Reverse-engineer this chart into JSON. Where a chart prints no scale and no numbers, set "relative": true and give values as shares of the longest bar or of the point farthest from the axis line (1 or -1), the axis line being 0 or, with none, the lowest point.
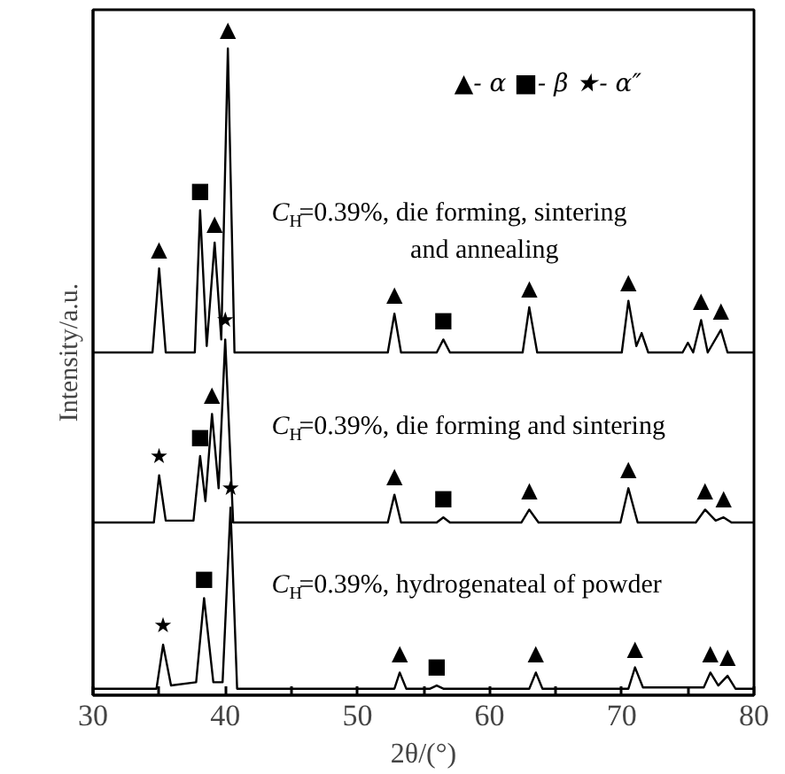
{
  "chart_data": {
    "type": "line",
    "relative": true,
    "xlabel": "2θ/(°)",
    "ylabel": "Intensity/a.u.",
    "xlim": [
      30,
      80
    ],
    "xticks": [
      30,
      {
        "value": 35,
        "label": null
      },
      40,
      {
        "value": 45,
        "label": null
      },
      50,
      {
        "value": 55,
        "label": null
      },
      60,
      {
        "value": 65,
        "label": null
      },
      70,
      {
        "value": 75,
        "label": null
      },
      80
    ],
    "grid": false,
    "marker": "none",
    "line_style": "solid",
    "series": [
      {
        "color": "#000000",
        "x": [
          30,
          34.5,
          35,
          35.5,
          37.7,
          38.1,
          38.6,
          39.2,
          39.7,
          40.2,
          40.7,
          52.3,
          52.8,
          53.3,
          56,
          56.5,
          57,
          62.5,
          63,
          63.6,
          70,
          70.5,
          71.1,
          71.5,
          72,
          74.6,
          75,
          75.4,
          76,
          76.5,
          77.5,
          78,
          80
        ],
        "values": [
          0.53,
          0.53,
          0.66,
          0.53,
          0.53,
          0.75,
          0.54,
          0.7,
          0.55,
          1.0,
          0.53,
          0.53,
          0.59,
          0.53,
          0.53,
          0.55,
          0.53,
          0.53,
          0.6,
          0.53,
          0.53,
          0.61,
          0.54,
          0.56,
          0.53,
          0.53,
          0.545,
          0.53,
          0.58,
          0.53,
          0.565,
          0.53,
          0.53
        ]
      },
      {
        "color": "#000000",
        "x": [
          30,
          34.6,
          35,
          35.5,
          37.6,
          38.1,
          38.5,
          39,
          39.5,
          40,
          40.6,
          52.3,
          52.8,
          53.3,
          56,
          56.5,
          57,
          62.4,
          63,
          63.7,
          69.9,
          70.5,
          71.2,
          75.6,
          76.3,
          77.1,
          77.7,
          78.3,
          80
        ],
        "values": [
          0.267,
          0.267,
          0.34,
          0.27,
          0.27,
          0.37,
          0.3,
          0.435,
          0.32,
          0.55,
          0.267,
          0.267,
          0.31,
          0.267,
          0.267,
          0.275,
          0.267,
          0.267,
          0.287,
          0.267,
          0.267,
          0.32,
          0.267,
          0.267,
          0.287,
          0.27,
          0.275,
          0.267,
          0.267
        ]
      },
      {
        "color": "#000000",
        "x": [
          30,
          34.8,
          35.3,
          35.9,
          37.8,
          38.4,
          39.1,
          39.8,
          40.4,
          40.9,
          52.8,
          53.2,
          53.7,
          55.5,
          56,
          56.5,
          63,
          63.5,
          64,
          70.5,
          71,
          71.6,
          76.2,
          76.7,
          77.3,
          78,
          78.6,
          80
        ],
        "values": [
          0.01,
          0.01,
          0.078,
          0.015,
          0.02,
          0.15,
          0.02,
          0.02,
          0.29,
          0.01,
          0.01,
          0.035,
          0.01,
          0.01,
          0.015,
          0.01,
          0.01,
          0.035,
          0.01,
          0.01,
          0.043,
          0.012,
          0.012,
          0.035,
          0.015,
          0.03,
          0.01,
          0.01
        ]
      }
    ],
    "annotations": [
      "▲- α  ■- β  ★- α″",
      "C$_{H}$=0.39%, die forming, sintering\nand annealing",
      "C$_{H}$=0.39%, die forming and sintering",
      "C$_{H}$=0.39%, hydrogenateal of powder",
      {
        "text": "▲",
        "x": 35,
        "y": 0.66
      },
      {
        "text": "■",
        "x": 38.1,
        "y": 0.75
      },
      {
        "text": "▲",
        "x": 39.2,
        "y": 0.7
      },
      {
        "text": "▲",
        "x": 40.2,
        "y": 1.0
      },
      {
        "text": "▲",
        "x": 52.8,
        "y": 0.59
      },
      {
        "text": "■",
        "x": 56.5,
        "y": 0.55
      },
      {
        "text": "▲",
        "x": 63,
        "y": 0.6
      },
      {
        "text": "▲",
        "x": 70.5,
        "y": 0.61
      },
      {
        "text": "▲",
        "x": 76,
        "y": 0.58
      },
      {
        "text": "▲",
        "x": 77.5,
        "y": 0.565
      },
      {
        "text": "★",
        "x": 35,
        "y": 0.34
      },
      {
        "text": "■",
        "x": 38.1,
        "y": 0.37
      },
      {
        "text": "▲",
        "x": 39,
        "y": 0.435
      },
      {
        "text": "★",
        "x": 40,
        "y": 0.55
      },
      {
        "text": "▲",
        "x": 52.8,
        "y": 0.31
      },
      {
        "text": "■",
        "x": 56.5,
        "y": 0.275
      },
      {
        "text": "▲",
        "x": 63,
        "y": 0.287
      },
      {
        "text": "▲",
        "x": 70.5,
        "y": 0.32
      },
      {
        "text": "▲",
        "x": 76.3,
        "y": 0.287
      },
      {
        "text": "▲",
        "x": 77.7,
        "y": 0.275
      },
      {
        "text": "★",
        "x": 35.3,
        "y": 0.078
      },
      {
        "text": "■",
        "x": 38.4,
        "y": 0.15
      },
      {
        "text": "★",
        "x": 40.4,
        "y": 0.29
      },
      {
        "text": "▲",
        "x": 53.2,
        "y": 0.035
      },
      {
        "text": "■",
        "x": 56,
        "y": 0.015
      },
      {
        "text": "▲",
        "x": 63.5,
        "y": 0.035
      },
      {
        "text": "▲",
        "x": 71,
        "y": 0.043
      },
      {
        "text": "▲",
        "x": 76.7,
        "y": 0.035
      },
      {
        "text": "▲",
        "x": 78,
        "y": 0.03
      }
    ]
  }
}
